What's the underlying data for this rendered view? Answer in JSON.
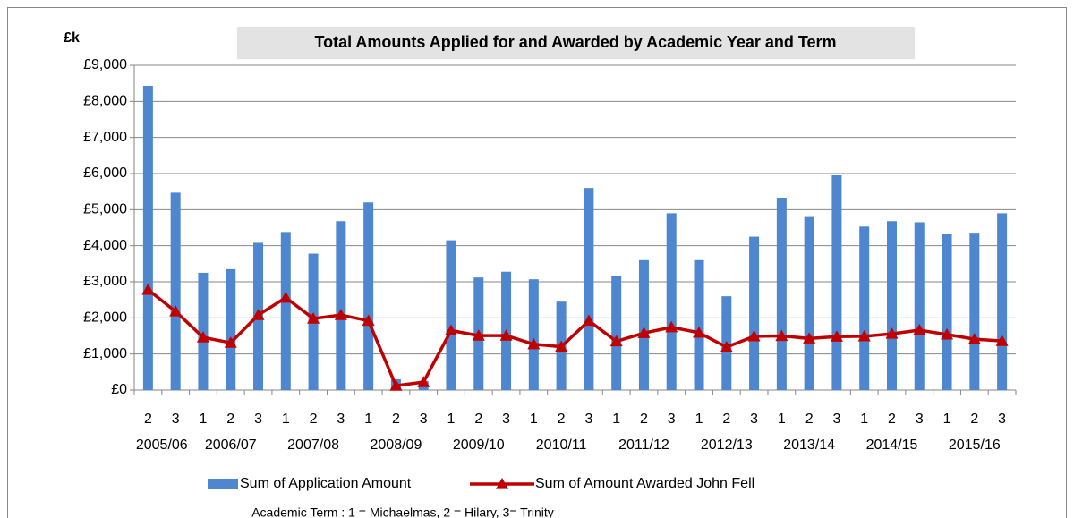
{
  "chart_data": {
    "type": "combo",
    "title": "Total Amounts Applied for and Awarded by Academic Year and Term",
    "y_label": "£k",
    "footnote": "Academic Term : 1 = Michaelmas, 2 = Hilary, 3= Trinity",
    "categories": [
      "2",
      "3",
      "1",
      "2",
      "3",
      "1",
      "2",
      "3",
      "1",
      "2",
      "3",
      "1",
      "2",
      "3",
      "1",
      "2",
      "3",
      "1",
      "2",
      "3",
      "1",
      "2",
      "3",
      "1",
      "2",
      "3",
      "1",
      "2",
      "3",
      "1",
      "2",
      "3"
    ],
    "year_labels": [
      "2005/06",
      "2006/07",
      "2007/08",
      "2008/09",
      "2009/10",
      "2010/11",
      "2011/12",
      "2012/13",
      "2013/14",
      "2014/15",
      "2015/16"
    ],
    "series": [
      {
        "name": "Sum of Application Amount",
        "type": "bar",
        "color": "#4f86d0",
        "values": [
          8430,
          5470,
          3250,
          3350,
          4080,
          4380,
          3780,
          4680,
          5200,
          300,
          250,
          4150,
          3120,
          3280,
          3070,
          2450,
          5600,
          3150,
          3600,
          4900,
          3600,
          2600,
          4250,
          5330,
          4820,
          5950,
          4530,
          4680,
          4650,
          4320,
          4360,
          4900
        ]
      },
      {
        "name": "Sum of Amount Awarded John Fell",
        "type": "line",
        "color": "#c00000",
        "values": [
          2780,
          2180,
          1460,
          1310,
          2080,
          2560,
          1980,
          2080,
          1920,
          120,
          220,
          1650,
          1510,
          1510,
          1270,
          1200,
          1920,
          1350,
          1580,
          1740,
          1590,
          1190,
          1490,
          1500,
          1430,
          1480,
          1490,
          1560,
          1660,
          1540,
          1410,
          1360
        ]
      }
    ],
    "ylim": [
      0,
      9000
    ],
    "yticks": [
      {
        "value": 0,
        "label": "£0"
      },
      {
        "value": 1000,
        "label": "£1,000"
      },
      {
        "value": 2000,
        "label": "£2,000"
      },
      {
        "value": 3000,
        "label": "£3,000"
      },
      {
        "value": 4000,
        "label": "£4,000"
      },
      {
        "value": 5000,
        "label": "£5,000"
      },
      {
        "value": 6000,
        "label": "£6,000"
      },
      {
        "value": 7000,
        "label": "£7,000"
      },
      {
        "value": 8000,
        "label": "£8,000"
      },
      {
        "value": 9000,
        "label": "£9,000"
      }
    ],
    "grid": true
  }
}
